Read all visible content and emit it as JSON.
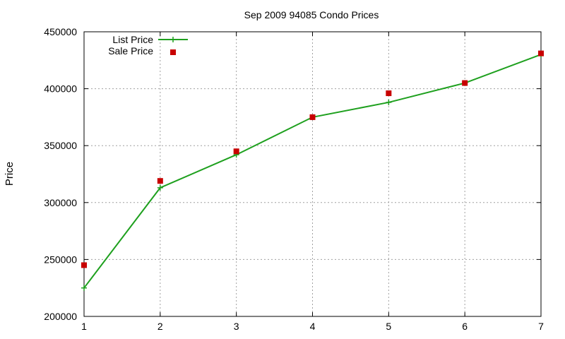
{
  "chart_data": {
    "type": "line",
    "title": "Sep 2009 94085 Condo Prices",
    "xlabel": "",
    "ylabel": "Price",
    "xlim": [
      1,
      7
    ],
    "ylim": [
      200000,
      450000
    ],
    "x_ticks": [
      "1",
      "2",
      "3",
      "4",
      "5",
      "6",
      "7"
    ],
    "y_ticks": [
      "200000",
      "250000",
      "300000",
      "350000",
      "400000",
      "450000"
    ],
    "grid": true,
    "legend_position": "top-left",
    "x": [
      1,
      2,
      3,
      4,
      5,
      6,
      7
    ],
    "series": [
      {
        "name": "List Price",
        "style": "line-plus",
        "color": "#1ea01e",
        "values": [
          225000,
          313000,
          342000,
          375000,
          388000,
          405000,
          430000
        ]
      },
      {
        "name": "Sale Price",
        "style": "square-markers",
        "color": "#c80000",
        "values": [
          245000,
          319000,
          345000,
          375000,
          396000,
          405000,
          431000
        ]
      }
    ]
  }
}
